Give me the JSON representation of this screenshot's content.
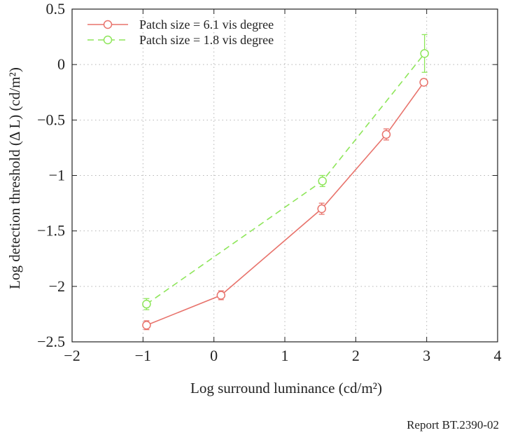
{
  "chart_data": {
    "type": "line",
    "xlabel": "Log surround luminance (cd/m²)",
    "ylabel": "Log detection threshold (Δ L) (cd/m²)",
    "xlim": [
      -2,
      4
    ],
    "ylim": [
      -2.5,
      0.5
    ],
    "x_ticks": [
      -2,
      -1,
      0,
      1,
      2,
      3,
      4
    ],
    "y_ticks": [
      -2.5,
      -2,
      -1.5,
      -1,
      -0.5,
      0,
      0.5
    ],
    "x_tick_labels": [
      "−2",
      "−1",
      "0",
      "1",
      "2",
      "3",
      "4"
    ],
    "y_tick_labels": [
      "−2.5",
      "−2",
      "−1.5",
      "−1",
      "−0.5",
      "0",
      "0.5"
    ],
    "grid": true,
    "legend_position": "top-left",
    "series": [
      {
        "name": "Patch size = 6.1 vis degree",
        "color": "#e8736c",
        "line_style": "solid",
        "marker": "circle",
        "x": [
          -0.95,
          0.1,
          1.52,
          2.43,
          2.96
        ],
        "y": [
          -2.35,
          -2.08,
          -1.3,
          -0.63,
          -0.16
        ],
        "error": [
          0.04,
          0.04,
          0.05,
          0.05,
          0.03
        ]
      },
      {
        "name": "Patch size = 1.8 vis degree",
        "color": "#8ee65a",
        "line_style": "dashed",
        "marker": "circle",
        "x": [
          -0.95,
          1.53,
          2.97
        ],
        "y": [
          -2.16,
          -1.05,
          0.1
        ],
        "error": [
          0.05,
          0.05,
          0.17
        ]
      }
    ]
  },
  "footer": {
    "report_label": "Report BT.2390-02"
  }
}
